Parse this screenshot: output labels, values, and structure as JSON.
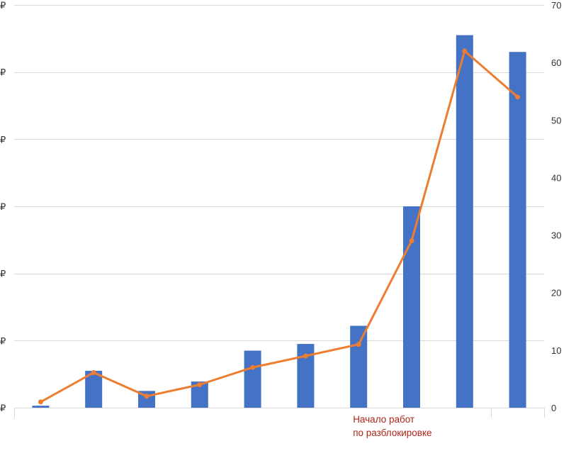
{
  "chart_data": {
    "type": "bar+line",
    "categories": [
      "",
      "",
      "",
      "",
      "",
      "",
      "",
      "",
      "",
      ""
    ],
    "series": [
      {
        "type": "bar",
        "axis": "left",
        "values": [
          0.03,
          0.55,
          0.25,
          0.39,
          0.85,
          0.95,
          1.22,
          3.0,
          5.55,
          5.3
        ]
      },
      {
        "type": "line",
        "axis": "right",
        "values": [
          1,
          6.1,
          2,
          4,
          7,
          9,
          11,
          29,
          62,
          54
        ]
      }
    ],
    "y_left": {
      "min": 0,
      "max": 6,
      "step": 1,
      "tick_labels": [
        "₽",
        "₽",
        "₽",
        "₽",
        "₽",
        "₽",
        "₽"
      ]
    },
    "y_right": {
      "min": 0,
      "max": 70,
      "step": 10,
      "tick_labels": [
        "0",
        "10",
        "20",
        "30",
        "40",
        "50",
        "60",
        "70"
      ]
    },
    "grid": true,
    "annotation": {
      "lines": [
        "Начало работ",
        "по разблокировке"
      ],
      "category_index": 6
    },
    "colors": {
      "bar": "#4472c4",
      "line": "#ed7d31",
      "grid": "#d9d9d9",
      "annotation": "#b02418"
    }
  }
}
